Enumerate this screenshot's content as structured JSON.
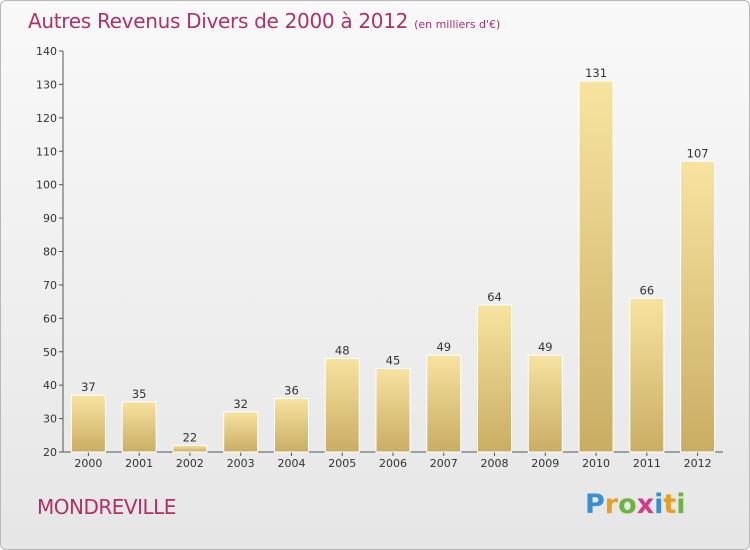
{
  "title": "Autres Revenus Divers de 2000 à 2012",
  "unit": "(en milliers d'€)",
  "commune": "MONDREVILLE",
  "logo": {
    "letters": [
      "P",
      "r",
      "o",
      "x",
      "i",
      "t",
      "i"
    ]
  },
  "colors": {
    "title": "#b0306a",
    "bar_light": "#f7e3a0",
    "bar_dark": "#c9ad63",
    "axis": "#555555"
  },
  "chart_data": {
    "type": "bar",
    "categories": [
      "2000",
      "2001",
      "2002",
      "2003",
      "2004",
      "2005",
      "2006",
      "2007",
      "2008",
      "2009",
      "2010",
      "2011",
      "2012"
    ],
    "values": [
      37,
      35,
      22,
      32,
      36,
      48,
      45,
      49,
      64,
      49,
      131,
      66,
      107
    ],
    "ylim": [
      20,
      140
    ],
    "yticks": [
      20,
      30,
      40,
      50,
      60,
      70,
      80,
      90,
      100,
      110,
      120,
      130,
      140
    ],
    "title": "Autres Revenus Divers de 2000 à 2012",
    "xlabel": "",
    "ylabel": "",
    "grid": false,
    "legend": "none"
  }
}
